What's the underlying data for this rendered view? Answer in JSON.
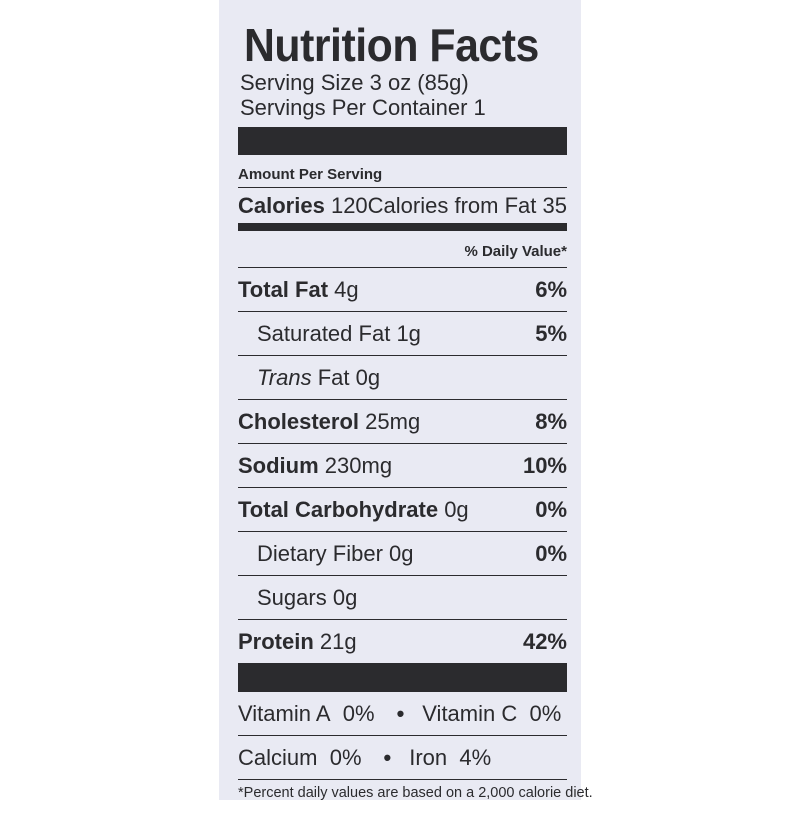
{
  "title": "Nutrition Facts",
  "serving_size": "Serving Size 3 oz (85g)",
  "servings_per_container": "Servings Per Container 1",
  "amount_per_serving": "Amount Per Serving",
  "calories": {
    "label": "Calories",
    "value": "120",
    "from_fat_label": "Calories from Fat",
    "from_fat_value": "35"
  },
  "daily_value_header": "% Daily Value*",
  "nutrients": [
    {
      "name": "Total Fat",
      "amount": "4g",
      "dv": "6%"
    },
    {
      "name": "Saturated Fat",
      "amount": "1g",
      "dv": "5%"
    },
    {
      "name_italic": "Trans",
      "name": "Fat",
      "amount": "0g",
      "dv": ""
    },
    {
      "name": "Cholesterol",
      "amount": "25mg",
      "dv": "8%"
    },
    {
      "name": "Sodium",
      "amount": "230mg",
      "dv": "10%"
    },
    {
      "name": "Total Carbohydrate",
      "amount": "0g",
      "dv": "0%"
    },
    {
      "name": "Dietary Fiber",
      "amount": "0g",
      "dv": "0%"
    },
    {
      "name": "Sugars",
      "amount": "0g",
      "dv": ""
    },
    {
      "name": "Protein",
      "amount": "21g",
      "dv": "42%"
    }
  ],
  "vitamins": {
    "vitamin_a": "Vitamin A",
    "vitamin_a_value": "0%",
    "vitamin_c": "Vitamin C",
    "vitamin_c_value": "0%",
    "calcium": "Calcium",
    "calcium_value": "0%",
    "iron": "Iron",
    "iron_value": "4%",
    "separator": "•"
  },
  "footnote": "*Percent daily values are based on a 2,000 calorie diet.",
  "colors": {
    "panel": "#e9eaf3",
    "ink": "#2b2b2e",
    "background": "#ffffff"
  }
}
